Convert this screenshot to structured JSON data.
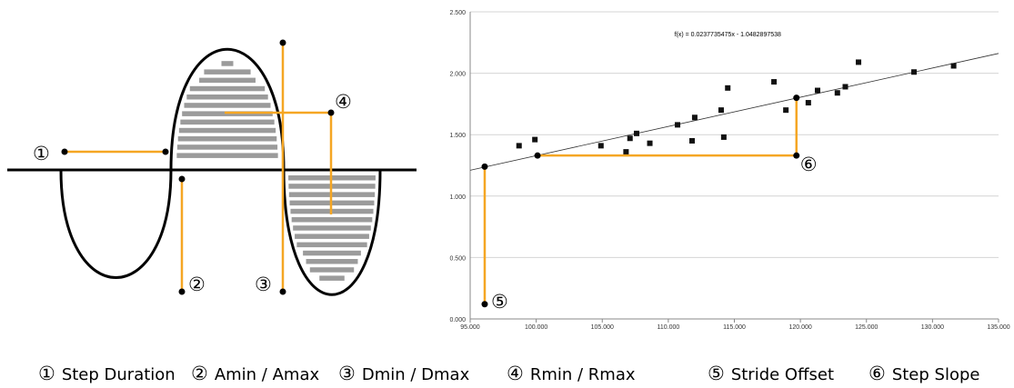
{
  "legend": [
    {
      "symbol": "①",
      "label": "Step Duration"
    },
    {
      "symbol": "②",
      "label": "Amin / Amax"
    },
    {
      "symbol": "③",
      "label": "Dmin / Dmax"
    },
    {
      "symbol": "④",
      "label": "Rmin / Rmax"
    },
    {
      "symbol": "⑤",
      "label": "Stride Offset"
    },
    {
      "symbol": "⑥",
      "label": "Step Slope"
    }
  ],
  "diagram": {
    "markers": [
      "①",
      "②",
      "③",
      "④"
    ],
    "colors": {
      "accent": "#F5A623",
      "hatch": "#9B9B9B",
      "curve": "#000000"
    }
  },
  "chart_data": {
    "type": "scatter",
    "xlim": [
      95,
      135
    ],
    "ylim": [
      0,
      2.5
    ],
    "xticks": [
      "95.000",
      "100.000",
      "105.000",
      "110.000",
      "115.000",
      "120.000",
      "125.000",
      "130.000",
      "135.000"
    ],
    "yticks": [
      "0.000",
      "0.500",
      "1.000",
      "1.500",
      "2.000",
      "2.500"
    ],
    "grid": true,
    "legend": "none",
    "trendline": {
      "label": "f(x) = 0.0237735475x - 1.0482897538",
      "slope": 0.0237735475,
      "intercept": -1.0482897538
    },
    "points": [
      {
        "x": 98.7,
        "y": 1.41
      },
      {
        "x": 99.9,
        "y": 1.46
      },
      {
        "x": 104.9,
        "y": 1.41
      },
      {
        "x": 106.8,
        "y": 1.36
      },
      {
        "x": 107.1,
        "y": 1.47
      },
      {
        "x": 107.6,
        "y": 1.51
      },
      {
        "x": 108.6,
        "y": 1.43
      },
      {
        "x": 110.7,
        "y": 1.58
      },
      {
        "x": 111.8,
        "y": 1.45
      },
      {
        "x": 112.0,
        "y": 1.64
      },
      {
        "x": 114.0,
        "y": 1.7
      },
      {
        "x": 114.2,
        "y": 1.48
      },
      {
        "x": 114.5,
        "y": 1.88
      },
      {
        "x": 118.0,
        "y": 1.93
      },
      {
        "x": 118.9,
        "y": 1.7
      },
      {
        "x": 120.6,
        "y": 1.76
      },
      {
        "x": 121.3,
        "y": 1.86
      },
      {
        "x": 122.8,
        "y": 1.84
      },
      {
        "x": 123.4,
        "y": 1.89
      },
      {
        "x": 124.4,
        "y": 2.09
      },
      {
        "x": 128.6,
        "y": 2.01
      },
      {
        "x": 131.6,
        "y": 2.06
      }
    ],
    "stride_offset": {
      "marker": "⑤",
      "x": 96.1,
      "y_low": 0.12,
      "y_high": 1.24
    },
    "step_slope": {
      "marker": "⑥",
      "x1": 100.1,
      "x2": 119.7,
      "y_low": 1.33,
      "y_high": 1.8
    }
  }
}
